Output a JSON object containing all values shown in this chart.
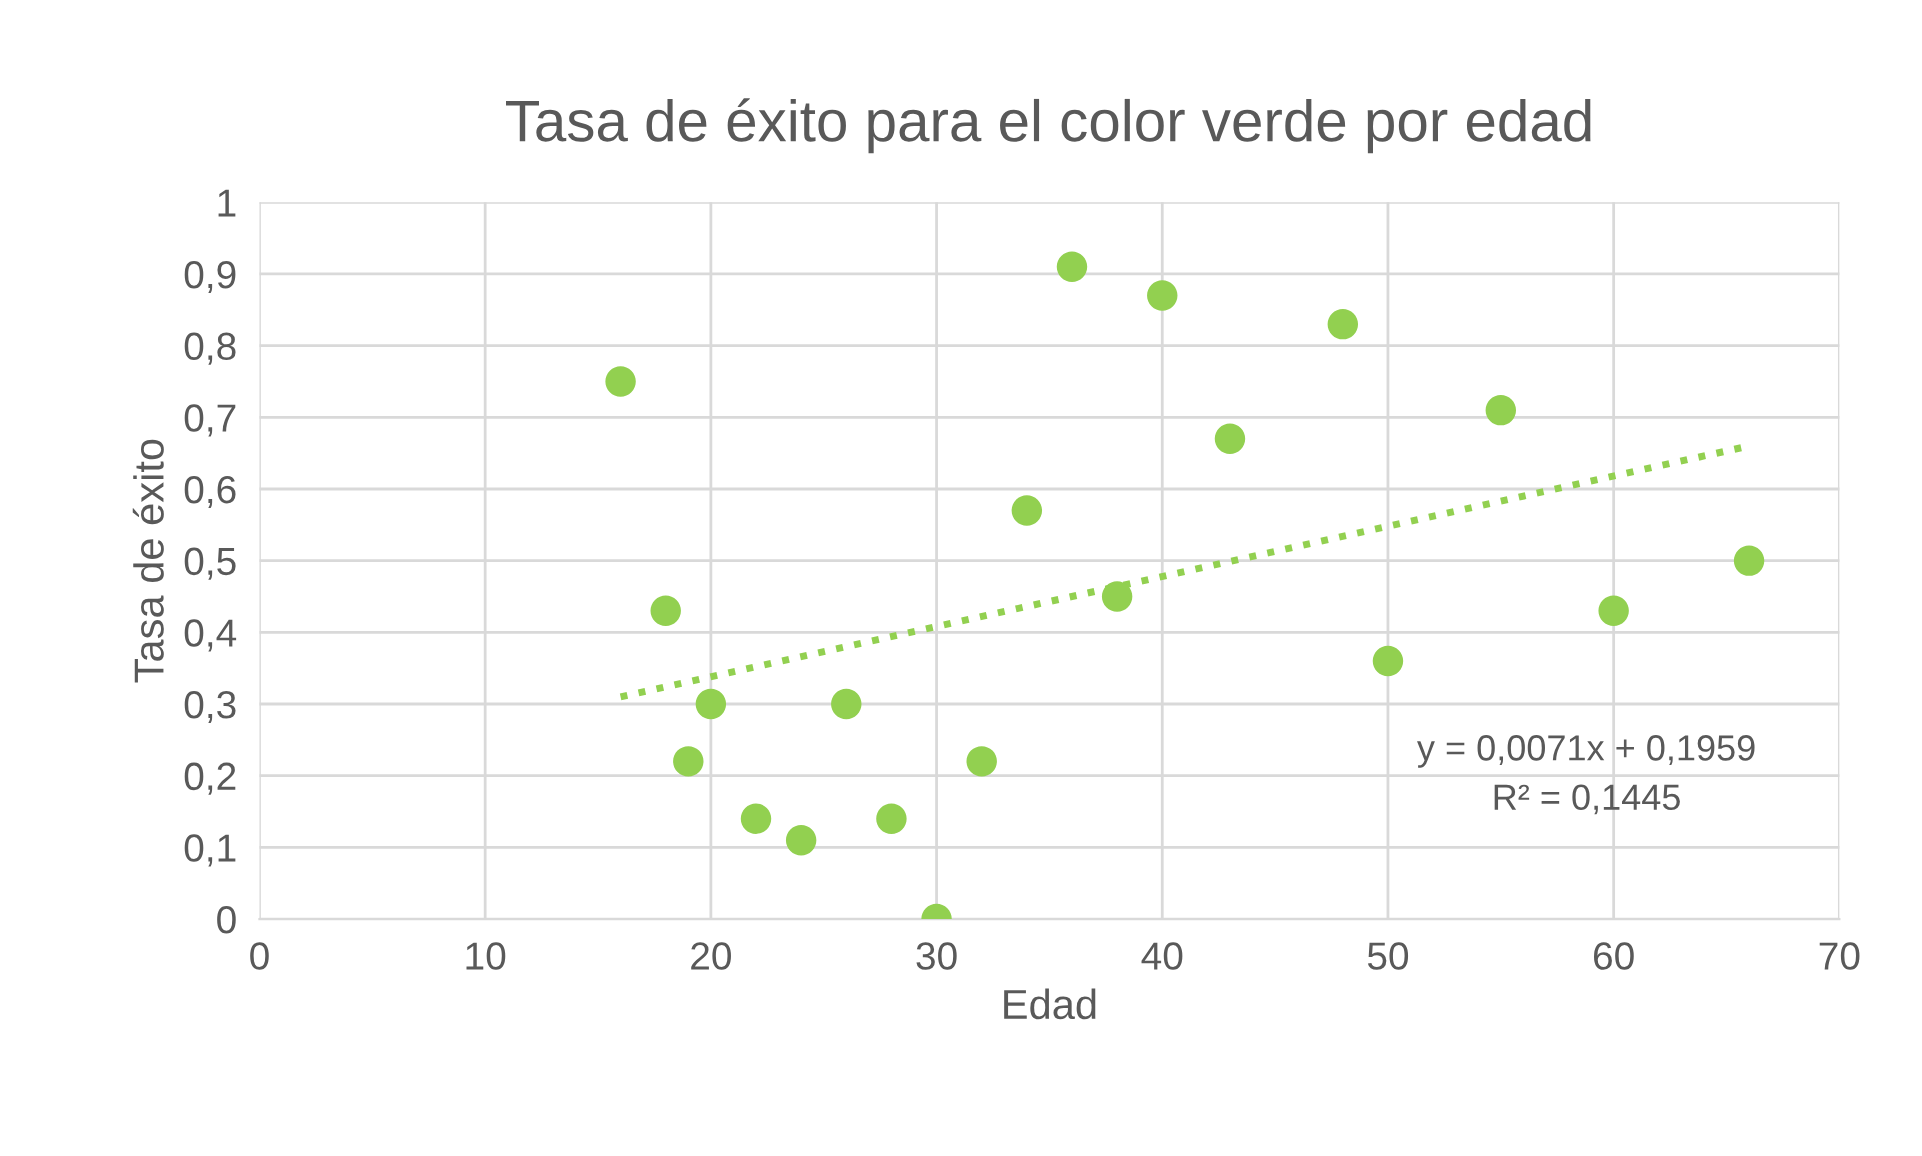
{
  "chart_data": {
    "type": "scatter",
    "title": "Tasa de éxito para el color verde por edad",
    "xlabel": "Edad",
    "ylabel": "Tasa de éxito",
    "series": [
      {
        "color": "#92d050",
        "marker": "circle",
        "x": [
          16,
          18,
          19,
          20,
          22,
          24,
          26,
          28,
          30,
          32,
          34,
          36,
          38,
          40,
          43,
          48,
          50,
          55,
          60,
          66
        ],
        "values": [
          0.75,
          0.43,
          0.22,
          0.3,
          0.14,
          0.11,
          0.3,
          0.14,
          0,
          0.22,
          0.57,
          0.91,
          0.45,
          0.87,
          0.67,
          0.83,
          0.36,
          0.71,
          0.43,
          0.5
        ]
      },
      {
        "type": "line",
        "color": "#92d050",
        "line_style": "dotted",
        "marker": "none",
        "x": [
          16,
          66
        ],
        "values": [
          0.31,
          0.66
        ]
      }
    ],
    "xlim": [
      0,
      70
    ],
    "xticks": [
      0,
      10,
      20,
      30,
      40,
      50,
      60,
      70
    ],
    "ylim": [
      0,
      1
    ],
    "yticks": [
      0,
      {
        "value": 0.1,
        "label": "0,1"
      },
      {
        "value": 0.2,
        "label": "0,2"
      },
      {
        "value": 0.3,
        "label": "0,3"
      },
      {
        "value": 0.4,
        "label": "0,4"
      },
      {
        "value": 0.5,
        "label": "0,5"
      },
      {
        "value": 0.6,
        "label": "0,6"
      },
      {
        "value": 0.7,
        "label": "0,7"
      },
      {
        "value": 0.8,
        "label": "0,8"
      },
      {
        "value": 0.9,
        "label": "0,9"
      },
      1
    ],
    "grid": true,
    "annotations": [
      "y = 0,0071x + 0,1959\nR² = 0,1445"
    ]
  }
}
